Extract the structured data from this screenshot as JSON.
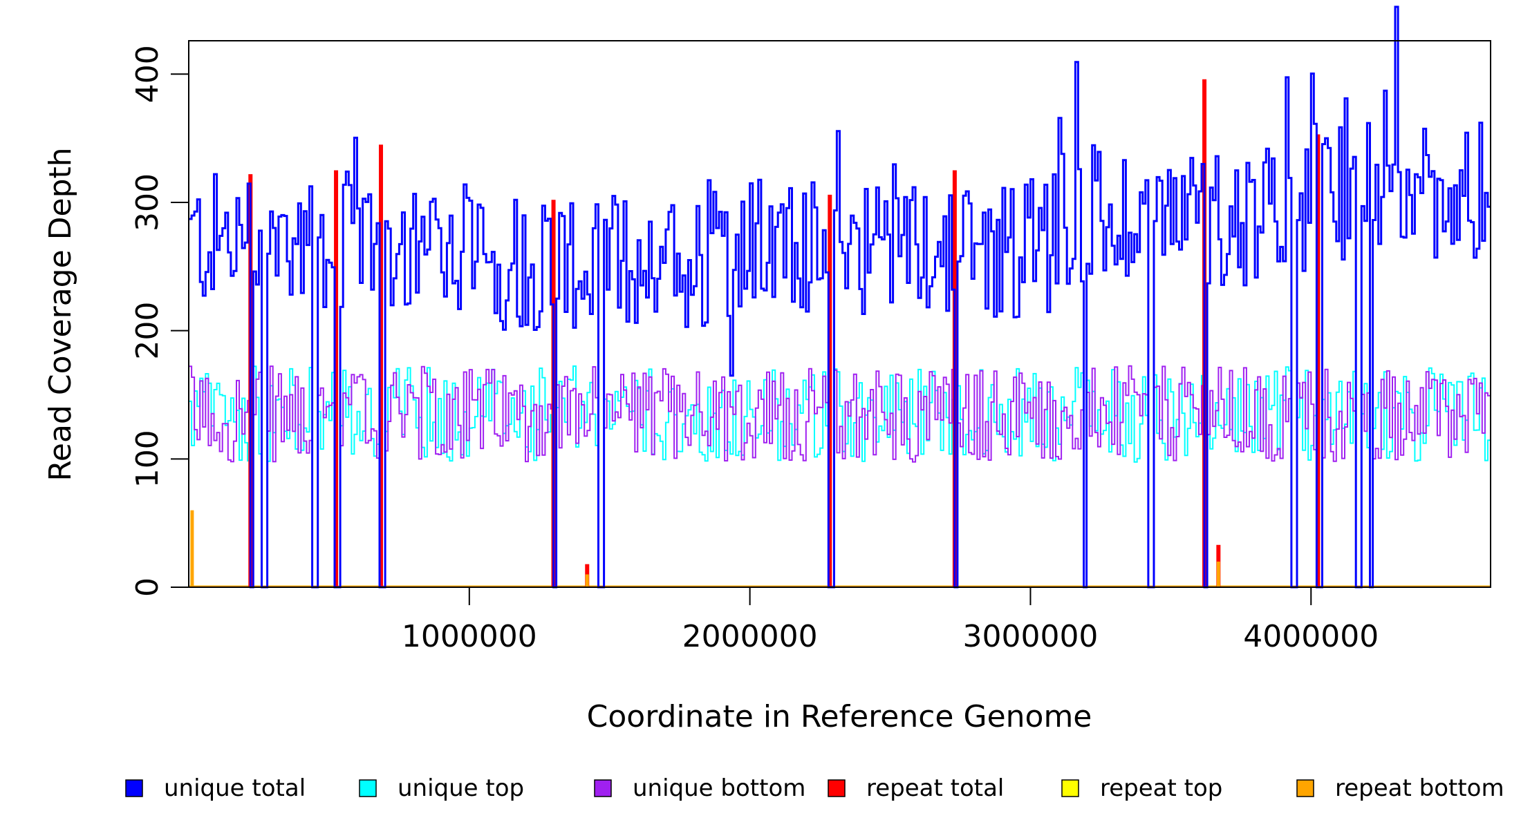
{
  "chart_data": {
    "type": "line",
    "title": "",
    "xlabel": "Coordinate in Reference Genome",
    "ylabel": "Read Coverage Depth",
    "xlim": [
      1,
      4640000
    ],
    "ylim": [
      0,
      426
    ],
    "x_ticks": [
      1000000,
      2000000,
      3000000,
      4000000
    ],
    "x_tick_labels": [
      "1000000",
      "2000000",
      "3000000",
      "4000000"
    ],
    "y_ticks": [
      0,
      100,
      200,
      300,
      400
    ],
    "y_tick_labels": [
      "0",
      "100",
      "200",
      "300",
      "400"
    ],
    "grid": false,
    "legend_position": "bottom",
    "colors": {
      "unique_total": "#0000FF",
      "unique_top": "#00FFFF",
      "unique_bottom": "#A020F0",
      "repeat_total": "#FF0000",
      "repeat_top": "#FFFF00",
      "repeat_bottom": "#FFA500"
    },
    "series": [
      {
        "name": "unique total",
        "color": "#0000FF"
      },
      {
        "name": "unique top",
        "color": "#00FFFF"
      },
      {
        "name": "unique bottom",
        "color": "#A020F0"
      },
      {
        "name": "repeat total",
        "color": "#FF0000"
      },
      {
        "name": "repeat top",
        "color": "#FFFF00"
      },
      {
        "name": "repeat bottom",
        "color": "#FFA500"
      }
    ],
    "coverage_profile": {
      "bin_width": 10000,
      "unique_total_segments": [
        {
          "x": [
            0,
            1000000
          ],
          "y": 270
        },
        {
          "x": [
            1000000,
            2000000
          ],
          "y": 255
        },
        {
          "x": [
            2000000,
            3000000
          ],
          "y": 265
        },
        {
          "x": [
            3000000,
            4000000
          ],
          "y": 290
        },
        {
          "x": [
            4000000,
            4640000
          ],
          "y": 310
        }
      ],
      "unique_strand_mean": 135,
      "dropouts_to_zero": [
        220000,
        265000,
        445000,
        525000,
        685000,
        1300000,
        1465000,
        2285000,
        2730000,
        3190000,
        3425000,
        3620000,
        3935000,
        4025000,
        4165000,
        4210000
      ],
      "repeat_total_spikes": [
        {
          "x": 220000,
          "y": 322
        },
        {
          "x": 525000,
          "y": 325
        },
        {
          "x": 685000,
          "y": 345
        },
        {
          "x": 1300000,
          "y": 302
        },
        {
          "x": 1420000,
          "y": 18
        },
        {
          "x": 2285000,
          "y": 306
        },
        {
          "x": 2730000,
          "y": 325
        },
        {
          "x": 3620000,
          "y": 396
        },
        {
          "x": 3670000,
          "y": 33
        },
        {
          "x": 4025000,
          "y": 353
        }
      ],
      "repeat_bottom_spikes": [
        {
          "x": 12000,
          "y": 60
        },
        {
          "x": 1420000,
          "y": 10
        },
        {
          "x": 3670000,
          "y": 20
        }
      ]
    }
  }
}
